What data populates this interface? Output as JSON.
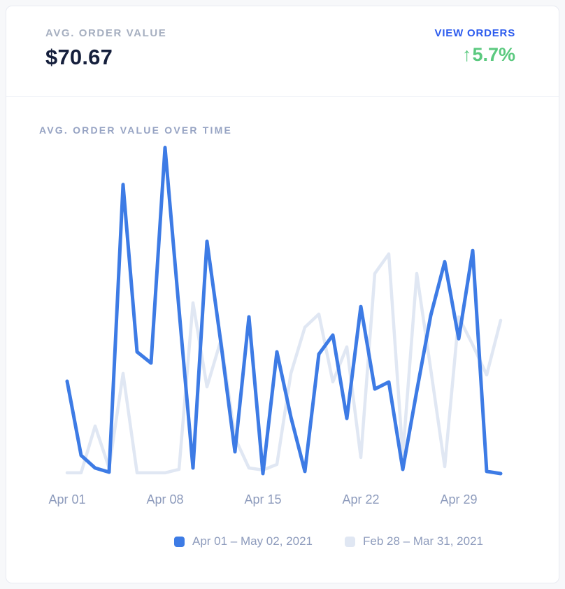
{
  "card": {
    "header": {
      "metric_label": "AVG. ORDER VALUE",
      "metric_value": "$70.67",
      "link_label": "VIEW ORDERS",
      "delta": {
        "arrow": "↑",
        "value": "5.7%",
        "direction": "up"
      }
    }
  },
  "chart_data": {
    "type": "line",
    "title": "AVG. ORDER VALUE OVER TIME",
    "x_tick_labels": [
      "Apr 01",
      "Apr 08",
      "Apr 15",
      "Apr 22",
      "Apr 29"
    ],
    "points_per_series": 32,
    "ylim": [
      0,
      170
    ],
    "grid": false,
    "y_axis_shown": false,
    "legend_position": "bottom",
    "series": [
      {
        "name": "Apr 01 – May 02, 2021",
        "color": "#3d7be5",
        "values": [
          46.9,
          9.8,
          3.5,
          1.4,
          145.3,
          61.6,
          56.0,
          163.8,
          82.9,
          3.5,
          116.9,
          65.8,
          11.6,
          79.1,
          0.7,
          61.6,
          29.0,
          1.8,
          60.5,
          70.0,
          28.3,
          84.3,
          43.0,
          46.5,
          2.8,
          42.0,
          79.8,
          106.7,
          68.2,
          112.3,
          1.8,
          0.7
        ]
      },
      {
        "name": "Feb 28 – Mar 31, 2021",
        "color": "#e0e7f3",
        "values": [
          1.1,
          1.1,
          24.5,
          3.5,
          50.8,
          1.1,
          1.1,
          1.1,
          2.8,
          86.1,
          44.1,
          67.6,
          18.6,
          3.5,
          2.5,
          5.3,
          50.8,
          73.9,
          80.5,
          46.6,
          64.1,
          8.8,
          100.8,
          110.6,
          9.8,
          100.8,
          52.9,
          4.2,
          79.1,
          65.1,
          50.1,
          77.4
        ]
      }
    ]
  },
  "colors": {
    "page_background": "#f7f8fa",
    "card_background": "#ffffff",
    "card_border": "#e8ebf2",
    "divider": "#e9edf4",
    "metric_label": "#a6afc0",
    "metric_value": "#151f3c",
    "link": "#2c5bee",
    "delta_up": "#5bc97f",
    "chart_title": "#96a3c3",
    "axis_label": "#8d9bbc",
    "series_current": "#3d7be5",
    "series_previous": "#e0e7f3"
  }
}
